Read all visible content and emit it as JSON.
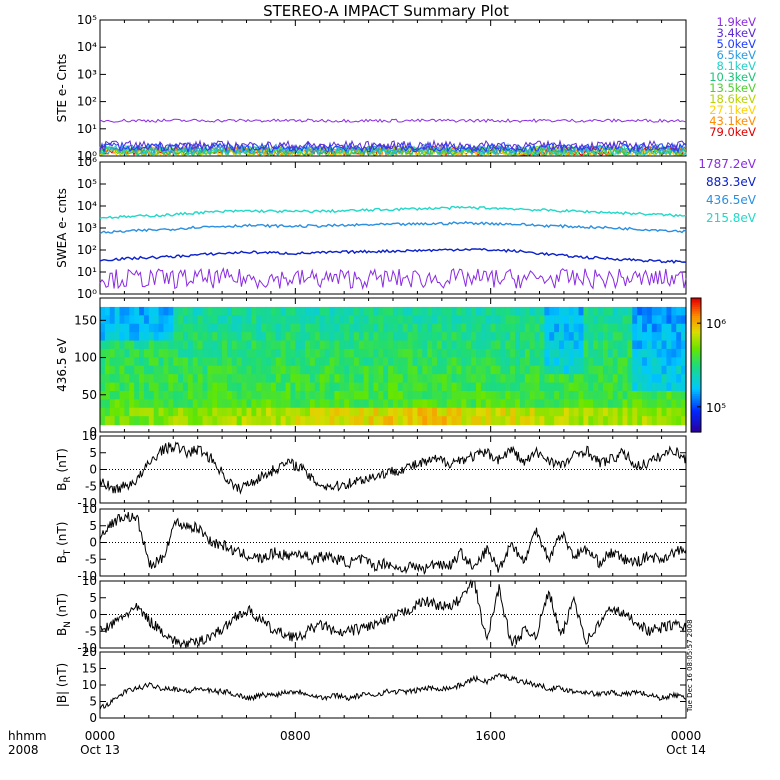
{
  "title": "STEREO-A IMPACT Summary Plot",
  "time_axis": {
    "label_top": "hhmm",
    "label_bottom": "2008",
    "ticks": [
      {
        "hhmm": "0000",
        "date": "Oct 13"
      },
      {
        "hhmm": "0800",
        "date": ""
      },
      {
        "hhmm": "1600",
        "date": ""
      },
      {
        "hhmm": "0000",
        "date": "Oct 14"
      }
    ]
  },
  "side_stamp": "Tue Dec 16 08:05:57 2008",
  "colors": {
    "ste": [
      "#8a2be2",
      "#5a2ad0",
      "#1e3cff",
      "#2a9be0",
      "#22d0c8",
      "#1fc27a",
      "#4fcf2f",
      "#b5d400",
      "#ffd200",
      "#ff8c00",
      "#e00000"
    ],
    "swea": [
      "#8a2be2",
      "#0a20c8",
      "#2a8fe0",
      "#22d8c8"
    ]
  },
  "chart_data": [
    {
      "type": "line",
      "panel": "ste",
      "ylabel": "STE e- Cnts",
      "yscale": "log",
      "ylim": [
        1,
        100000
      ],
      "yticks": [
        "10⁰",
        "10¹",
        "10²",
        "10³",
        "10⁴",
        "10⁵"
      ],
      "x": [
        "00:00",
        "24:00"
      ],
      "series": [
        {
          "name": "1.9keV",
          "level": 20
        },
        {
          "name": "3.4keV",
          "level": 1.6
        },
        {
          "name": "5.0keV",
          "level": 1.4
        },
        {
          "name": "6.5keV",
          "level": 1.2
        },
        {
          "name": "8.1keV",
          "level": 1.1
        },
        {
          "name": "10.3keV",
          "level": 1.0
        },
        {
          "name": "13.5keV",
          "level": 1.0
        },
        {
          "name": "18.6keV",
          "level": 1.0
        },
        {
          "name": "27.1keV",
          "level": 1.0
        },
        {
          "name": "43.1keV",
          "level": 1.0
        },
        {
          "name": "79.0keV",
          "level": 1.0
        }
      ]
    },
    {
      "type": "line",
      "panel": "swea",
      "ylabel": "SWEA e- cnts",
      "yscale": "log",
      "ylim": [
        1,
        1000000
      ],
      "yticks": [
        "10⁰",
        "10¹",
        "10²",
        "10³",
        "10⁴",
        "10⁵",
        "10⁶"
      ],
      "series": [
        {
          "name": "1787.2eV",
          "values": [
            5,
            5,
            5,
            5,
            5,
            5,
            5,
            5,
            5,
            5,
            5,
            5,
            5,
            5,
            5,
            5,
            5,
            5,
            5,
            5,
            5,
            5,
            5,
            5,
            5
          ]
        },
        {
          "name": "883.3eV",
          "values": [
            35,
            40,
            45,
            50,
            60,
            70,
            80,
            75,
            70,
            75,
            80,
            85,
            90,
            95,
            100,
            110,
            100,
            90,
            70,
            55,
            45,
            40,
            35,
            30,
            30
          ]
        },
        {
          "name": "436.5eV",
          "values": [
            600,
            700,
            800,
            900,
            1100,
            1200,
            1300,
            1250,
            1200,
            1250,
            1300,
            1400,
            1450,
            1500,
            1600,
            1700,
            1600,
            1500,
            1300,
            1200,
            1100,
            1000,
            900,
            800,
            700
          ]
        },
        {
          "name": "215.8eV",
          "values": [
            3000,
            3200,
            3600,
            4000,
            5000,
            5500,
            6000,
            5800,
            5600,
            5800,
            6000,
            6500,
            7000,
            7500,
            8000,
            8500,
            8000,
            7500,
            6500,
            6000,
            5500,
            5000,
            4500,
            4000,
            3500
          ]
        }
      ]
    },
    {
      "type": "heatmap",
      "panel": "pad",
      "ylabel": "436.5 eV",
      "ylim": [
        0,
        180
      ],
      "yticks": [
        "0",
        "50",
        "100",
        "150"
      ],
      "colorbar": {
        "min": 50000,
        "max": 2000000,
        "scale": "log",
        "ticks": [
          "10⁵",
          "10⁶"
        ]
      }
    },
    {
      "type": "line",
      "panel": "br",
      "ylabel": "B_R (nT)",
      "ylim": [
        -10,
        10
      ],
      "yticks": [
        "-10",
        "-5",
        "0",
        "5",
        "10"
      ],
      "values": [
        -3,
        -6,
        -5,
        -3,
        2,
        6,
        7,
        5,
        6,
        3,
        -2,
        -6,
        -4,
        -2,
        0,
        2,
        1,
        -3,
        -5,
        -5,
        -4,
        -3,
        -2,
        -1,
        0,
        1,
        2,
        3,
        2,
        3,
        4,
        5,
        3,
        6,
        2,
        5,
        3,
        1,
        4,
        6,
        2,
        3,
        5,
        1,
        2,
        4,
        6,
        3
      ]
    },
    {
      "type": "line",
      "panel": "bt",
      "ylabel": "B_T (nT)",
      "ylim": [
        -10,
        10
      ],
      "yticks": [
        "-10",
        "-5",
        "0",
        "5",
        "10"
      ],
      "values": [
        2,
        6,
        8,
        7,
        -7,
        -5,
        6,
        5,
        4,
        0,
        -1,
        -3,
        -4,
        -5,
        -3,
        -4,
        -3,
        -5,
        -4,
        -5,
        -6,
        -5,
        -7,
        -6,
        -8,
        -7,
        -8,
        -6,
        -7,
        -3,
        -8,
        -2,
        -8,
        0,
        -6,
        4,
        -5,
        3,
        -4,
        -2,
        -6,
        -3,
        -5,
        -6,
        -4,
        -5,
        -3,
        -2
      ]
    },
    {
      "type": "line",
      "panel": "bn",
      "ylabel": "B_N (nT)",
      "ylim": [
        -10,
        10
      ],
      "yticks": [
        "-10",
        "-5",
        "0",
        "5",
        "10"
      ],
      "values": [
        -5,
        -3,
        0,
        2,
        -2,
        -5,
        -8,
        -9,
        -8,
        -6,
        -4,
        0,
        1,
        -2,
        -5,
        -6,
        -7,
        -4,
        -3,
        -6,
        -5,
        -4,
        -3,
        -2,
        0,
        2,
        4,
        3,
        2,
        5,
        10,
        -8,
        8,
        -9,
        -5,
        -6,
        7,
        -7,
        5,
        -8,
        -3,
        2,
        0,
        -2,
        -5,
        -4,
        -3,
        -4
      ]
    },
    {
      "type": "line",
      "panel": "bmag",
      "ylabel": "|B| (nT)",
      "ylim": [
        0,
        20
      ],
      "yticks": [
        "0",
        "5",
        "10",
        "15",
        "20"
      ],
      "values": [
        3,
        5,
        8,
        9,
        10,
        9,
        9,
        8,
        9,
        8,
        8,
        7,
        6,
        7,
        7,
        8,
        8,
        7,
        6,
        7,
        6,
        7,
        7,
        8,
        8,
        8,
        9,
        9,
        9,
        10,
        12,
        11,
        13,
        12,
        11,
        10,
        9,
        9,
        8,
        8,
        7,
        8,
        7,
        8,
        7,
        6,
        7,
        6
      ]
    }
  ]
}
